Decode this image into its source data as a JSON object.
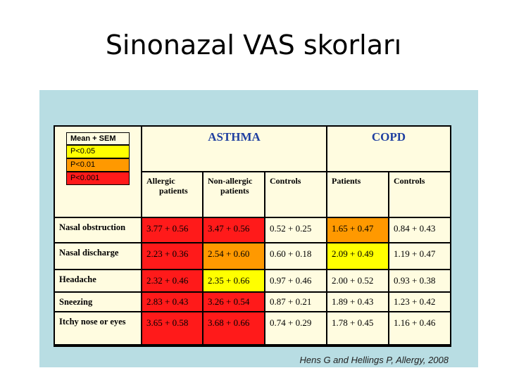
{
  "slide": {
    "title": "Sinonazal VAS skorları"
  },
  "legend": {
    "mean": "Mean + SEM",
    "p05": "P<0.05",
    "p01": "P<0.01",
    "p001": "P<0.001"
  },
  "groups": {
    "asthma": "ASTHMA",
    "copd": "COPD"
  },
  "columns": [
    {
      "line1": "Allergic",
      "line2": "patients"
    },
    {
      "line1": "Non-allergic",
      "line2": "patients"
    },
    {
      "line1": "Controls",
      "line2": ""
    },
    {
      "line1": "Patients",
      "line2": ""
    },
    {
      "line1": "Controls",
      "line2": ""
    }
  ],
  "rows": [
    {
      "label": "Nasal obstruction",
      "values": [
        "3.77 + 0.56",
        "3.47 + 0.56",
        "0.52 + 0.25",
        "1.65 + 0.47",
        "0.84 + 0.43"
      ],
      "significance": [
        "p001",
        "p001",
        "none",
        "p01",
        "none"
      ]
    },
    {
      "label": "Nasal discharge",
      "values": [
        "2.23 + 0.36",
        "2.54 + 0.60",
        "0.60 + 0.18",
        "2.09 + 0.49",
        "1.19 + 0.47"
      ],
      "significance": [
        "p001",
        "p01",
        "none",
        "p05",
        "none"
      ]
    },
    {
      "label": "Headache",
      "values": [
        "2.32 + 0.46",
        "2.35 + 0.66",
        "0.97 + 0.46",
        "2.00 + 0.52",
        "0.93 + 0.38"
      ],
      "significance": [
        "p001",
        "p05",
        "none",
        "none",
        "none"
      ]
    },
    {
      "label": "Sneezing",
      "values": [
        "2.83 + 0.43",
        "3.26 + 0.54",
        "0.87 + 0.21",
        "1.89 + 0.43",
        "1.23 + 0.42"
      ],
      "significance": [
        "p001",
        "p001",
        "none",
        "none",
        "none"
      ]
    },
    {
      "label": "Itchy nose or eyes",
      "values": [
        "3.65 + 0.58",
        "3.68 + 0.66",
        "0.74 + 0.29",
        "1.78 + 0.45",
        "1.16 + 0.46"
      ],
      "significance": [
        "p001",
        "p001",
        "none",
        "none",
        "none"
      ]
    }
  ],
  "colors": {
    "p05": "#ffff00",
    "p01": "#ff9900",
    "p001": "#ff1a1a",
    "none": "#fffce0",
    "figure_bg": "#b8dde3",
    "group_header": "#1f3fa0"
  },
  "citation": "Hens G and Hellings P, Allergy, 2008"
}
